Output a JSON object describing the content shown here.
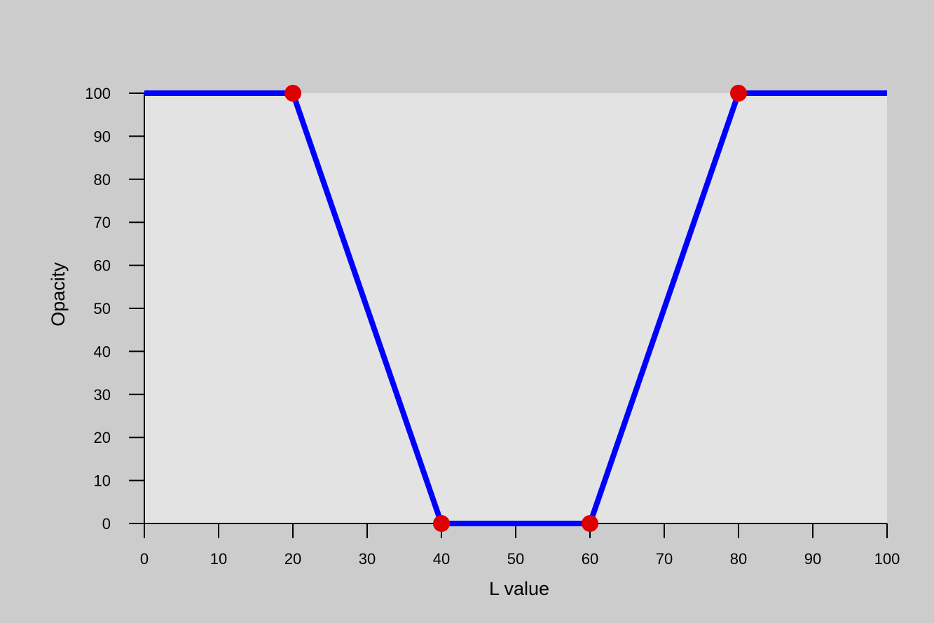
{
  "chart_data": {
    "type": "line",
    "xlabel": "L value",
    "ylabel": "Opacity",
    "xlim": [
      0,
      100
    ],
    "ylim": [
      0,
      100
    ],
    "xticks": [
      0,
      10,
      20,
      30,
      40,
      50,
      60,
      70,
      80,
      90,
      100
    ],
    "yticks": [
      0,
      10,
      20,
      30,
      40,
      50,
      60,
      70,
      80,
      90,
      100
    ],
    "series": [
      {
        "x": [
          0,
          20,
          40,
          60,
          80,
          100
        ],
        "y": [
          100,
          100,
          0,
          0,
          100,
          100
        ],
        "color": "#0000ff"
      }
    ],
    "control_points": {
      "x": [
        20,
        40,
        60,
        80
      ],
      "y": [
        100,
        0,
        0,
        100
      ],
      "color": "#dd0000"
    },
    "colors": {
      "page_background": "#cccccc",
      "plot_background": "#e3e3e3"
    }
  }
}
